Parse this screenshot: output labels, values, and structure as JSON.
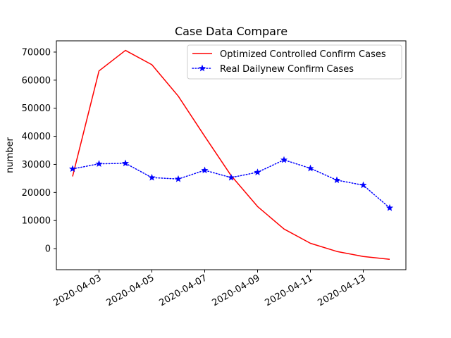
{
  "chart_data": {
    "type": "line",
    "title": "Case Data Compare",
    "xlabel": "",
    "ylabel": "number",
    "x": [
      "2020-04-02",
      "2020-04-03",
      "2020-04-04",
      "2020-04-05",
      "2020-04-06",
      "2020-04-07",
      "2020-04-08",
      "2020-04-09",
      "2020-04-10",
      "2020-04-11",
      "2020-04-12",
      "2020-04-13",
      "2020-04-14"
    ],
    "x_ticks": [
      "2020-04-03",
      "2020-04-05",
      "2020-04-07",
      "2020-04-09",
      "2020-04-11",
      "2020-04-13"
    ],
    "y_ticks": [
      0,
      10000,
      20000,
      30000,
      40000,
      50000,
      60000,
      70000
    ],
    "ylim": [
      -7500,
      74000
    ],
    "grid": false,
    "legend_position": "upper right",
    "series": [
      {
        "name": "Optimized Controlled Confirm Cases",
        "color": "#ff0000",
        "line_style": "solid",
        "marker": "none",
        "values": [
          25700,
          63300,
          70600,
          65500,
          54300,
          40000,
          26000,
          15000,
          7000,
          1900,
          -1000,
          -2800,
          -3800
        ]
      },
      {
        "name": "Real Dailynew Confirm Cases",
        "color": "#0000ff",
        "line_style": "dotted",
        "marker": "star",
        "values": [
          28400,
          30200,
          30400,
          25300,
          24800,
          27900,
          25300,
          27200,
          31600,
          28600,
          24400,
          22600,
          14500
        ]
      }
    ]
  }
}
